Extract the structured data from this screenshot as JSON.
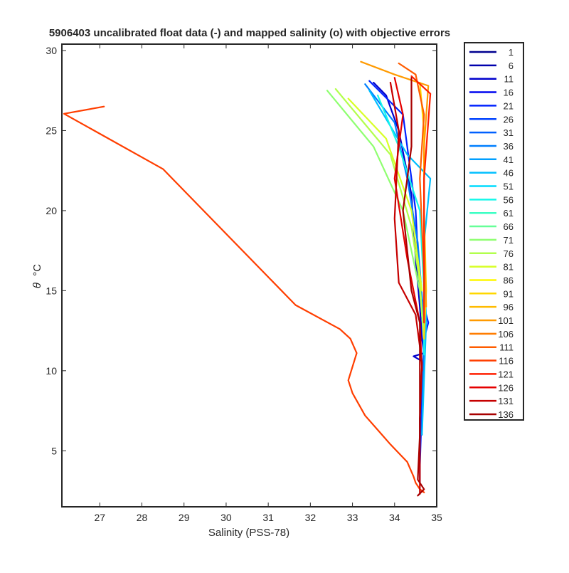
{
  "chart_data": {
    "type": "line",
    "title": "5906403 uncalibrated float data (-) and mapped salinity (o) with objective errors",
    "xlabel": "Salinity (PSS-78)",
    "ylabel_symbol": "θ",
    "ylabel_unit": "°C",
    "xlim": [
      26.1,
      35.0
    ],
    "ylim": [
      1.5,
      30.4
    ],
    "xticks": [
      27,
      28,
      29,
      30,
      31,
      32,
      33,
      34,
      35
    ],
    "yticks": [
      5,
      10,
      15,
      20,
      25,
      30
    ],
    "grid": false,
    "legend_position": "outside-right",
    "legend": [
      "1",
      "6",
      "11",
      "16",
      "21",
      "26",
      "31",
      "36",
      "41",
      "46",
      "51",
      "56",
      "61",
      "66",
      "71",
      "76",
      "81",
      "86",
      "91",
      "96",
      "101",
      "106",
      "111",
      "116",
      "121",
      "126",
      "131",
      "136"
    ],
    "legend_colors": [
      "#00008f",
      "#0000ad",
      "#0000cc",
      "#0007ef",
      "#0022ff",
      "#0042ff",
      "#0060ff",
      "#007fff",
      "#009fff",
      "#00bfff",
      "#00dcff",
      "#14f8ea",
      "#3cffc4",
      "#66ff98",
      "#8fff70",
      "#b2ff4c",
      "#d8ff26",
      "#fff800",
      "#ffd700",
      "#ffbb00",
      "#ff9a00",
      "#ff7d00",
      "#ff5c00",
      "#ff3e00",
      "#ff1f00",
      "#e50000",
      "#c60000",
      "#a80000"
    ],
    "series": [
      {
        "name": "116",
        "color": "#ff3e00",
        "points": [
          [
            27.1,
            26.5
          ],
          [
            26.15,
            26.05
          ],
          [
            28.5,
            22.6
          ],
          [
            31.65,
            14.1
          ],
          [
            32.7,
            12.6
          ],
          [
            32.95,
            12.0
          ],
          [
            33.1,
            11.1
          ],
          [
            32.9,
            9.4
          ],
          [
            33.0,
            8.6
          ],
          [
            33.3,
            7.2
          ],
          [
            33.6,
            6.3
          ],
          [
            33.9,
            5.4
          ],
          [
            34.3,
            4.3
          ],
          [
            34.45,
            3.4
          ],
          [
            34.5,
            3.0
          ],
          [
            34.6,
            2.6
          ],
          [
            34.7,
            2.4
          ]
        ]
      },
      {
        "name": "11",
        "color": "#0000cc",
        "points": [
          [
            33.5,
            28.0
          ],
          [
            33.8,
            27.2
          ],
          [
            34.1,
            25.0
          ],
          [
            34.4,
            21.0
          ],
          [
            34.5,
            17.0
          ],
          [
            34.6,
            14.0
          ],
          [
            34.65,
            12.0
          ],
          [
            34.7,
            11.1
          ],
          [
            34.45,
            10.9
          ],
          [
            34.65,
            10.6
          ],
          [
            34.65,
            9.0
          ],
          [
            34.6,
            7.0
          ],
          [
            34.6,
            5.0
          ],
          [
            34.6,
            3.0
          ]
        ]
      },
      {
        "name": "21",
        "color": "#0022ff",
        "points": [
          [
            33.4,
            28.1
          ],
          [
            34.2,
            26.0
          ],
          [
            34.5,
            20.0
          ],
          [
            34.6,
            15.0
          ],
          [
            34.8,
            13.0
          ],
          [
            34.7,
            12.0
          ],
          [
            34.65,
            8.0
          ],
          [
            34.6,
            4.0
          ]
        ]
      },
      {
        "name": "36",
        "color": "#007fff",
        "points": [
          [
            33.3,
            27.9
          ],
          [
            34.0,
            25.5
          ],
          [
            34.3,
            22.0
          ],
          [
            34.55,
            18.0
          ],
          [
            34.7,
            13.0
          ],
          [
            34.65,
            6.0
          ]
        ]
      },
      {
        "name": "46",
        "color": "#00bfff",
        "points": [
          [
            33.4,
            27.5
          ],
          [
            34.3,
            23.5
          ],
          [
            34.85,
            22.0
          ],
          [
            34.7,
            18.0
          ],
          [
            34.75,
            13.0
          ],
          [
            34.65,
            6.0
          ]
        ]
      },
      {
        "name": "56",
        "color": "#14f8ea",
        "points": [
          [
            33.6,
            27.2
          ],
          [
            34.1,
            24.0
          ],
          [
            34.6,
            20.0
          ],
          [
            34.7,
            15.0
          ],
          [
            34.7,
            11.0
          ]
        ]
      },
      {
        "name": "71",
        "color": "#8fff70",
        "points": [
          [
            32.4,
            27.5
          ],
          [
            33.5,
            24.0
          ],
          [
            34.2,
            20.0
          ],
          [
            34.6,
            15.0
          ],
          [
            34.7,
            12.0
          ]
        ]
      },
      {
        "name": "76",
        "color": "#b2ff4c",
        "points": [
          [
            32.6,
            27.6
          ],
          [
            33.9,
            23.5
          ],
          [
            34.4,
            19.0
          ],
          [
            34.6,
            15.5
          ],
          [
            34.7,
            12.0
          ]
        ]
      },
      {
        "name": "81",
        "color": "#d8ff26",
        "points": [
          [
            32.9,
            27.0
          ],
          [
            33.8,
            24.5
          ],
          [
            34.4,
            20.0
          ],
          [
            34.65,
            15.0
          ]
        ]
      },
      {
        "name": "91",
        "color": "#ffd700",
        "points": [
          [
            34.6,
            28.0
          ],
          [
            34.7,
            25.0
          ],
          [
            34.7,
            20.0
          ],
          [
            34.75,
            15.0
          ],
          [
            34.7,
            12.0
          ]
        ]
      },
      {
        "name": "101",
        "color": "#ff9a00",
        "points": [
          [
            33.2,
            29.3
          ],
          [
            34.0,
            28.5
          ],
          [
            34.8,
            27.8
          ],
          [
            34.7,
            24.0
          ],
          [
            34.7,
            19.0
          ],
          [
            34.75,
            14.0
          ]
        ]
      },
      {
        "name": "111",
        "color": "#ff5c00",
        "points": [
          [
            34.1,
            29.2
          ],
          [
            34.5,
            28.5
          ],
          [
            34.7,
            26.0
          ],
          [
            34.6,
            22.0
          ],
          [
            34.7,
            16.0
          ]
        ]
      },
      {
        "name": "121",
        "color": "#ff1f00",
        "points": [
          [
            34.4,
            28.4
          ],
          [
            34.85,
            27.3
          ],
          [
            34.7,
            22.0
          ],
          [
            34.7,
            17.0
          ],
          [
            34.7,
            13.0
          ]
        ]
      },
      {
        "name": "126",
        "color": "#e50000",
        "points": [
          [
            34.0,
            28.3
          ],
          [
            34.2,
            26.0
          ],
          [
            34.0,
            22.0
          ],
          [
            34.3,
            17.0
          ],
          [
            34.6,
            13.0
          ],
          [
            34.65,
            10.0
          ]
        ]
      },
      {
        "name": "131",
        "color": "#c60000",
        "points": [
          [
            33.9,
            28.0
          ],
          [
            34.1,
            25.0
          ],
          [
            34.0,
            19.5
          ],
          [
            34.1,
            15.5
          ],
          [
            34.5,
            13.5
          ],
          [
            34.65,
            10.5
          ],
          [
            34.6,
            7.0
          ],
          [
            34.6,
            3.5
          ],
          [
            34.6,
            2.3
          ]
        ]
      },
      {
        "name": "136",
        "color": "#a80000",
        "points": [
          [
            34.4,
            28.3
          ],
          [
            34.4,
            24.0
          ],
          [
            34.2,
            20.0
          ],
          [
            34.4,
            15.0
          ],
          [
            34.6,
            13.0
          ],
          [
            34.6,
            9.0
          ],
          [
            34.6,
            6.0
          ],
          [
            34.55,
            3.2
          ],
          [
            34.7,
            2.6
          ],
          [
            34.55,
            2.2
          ]
        ]
      }
    ]
  }
}
